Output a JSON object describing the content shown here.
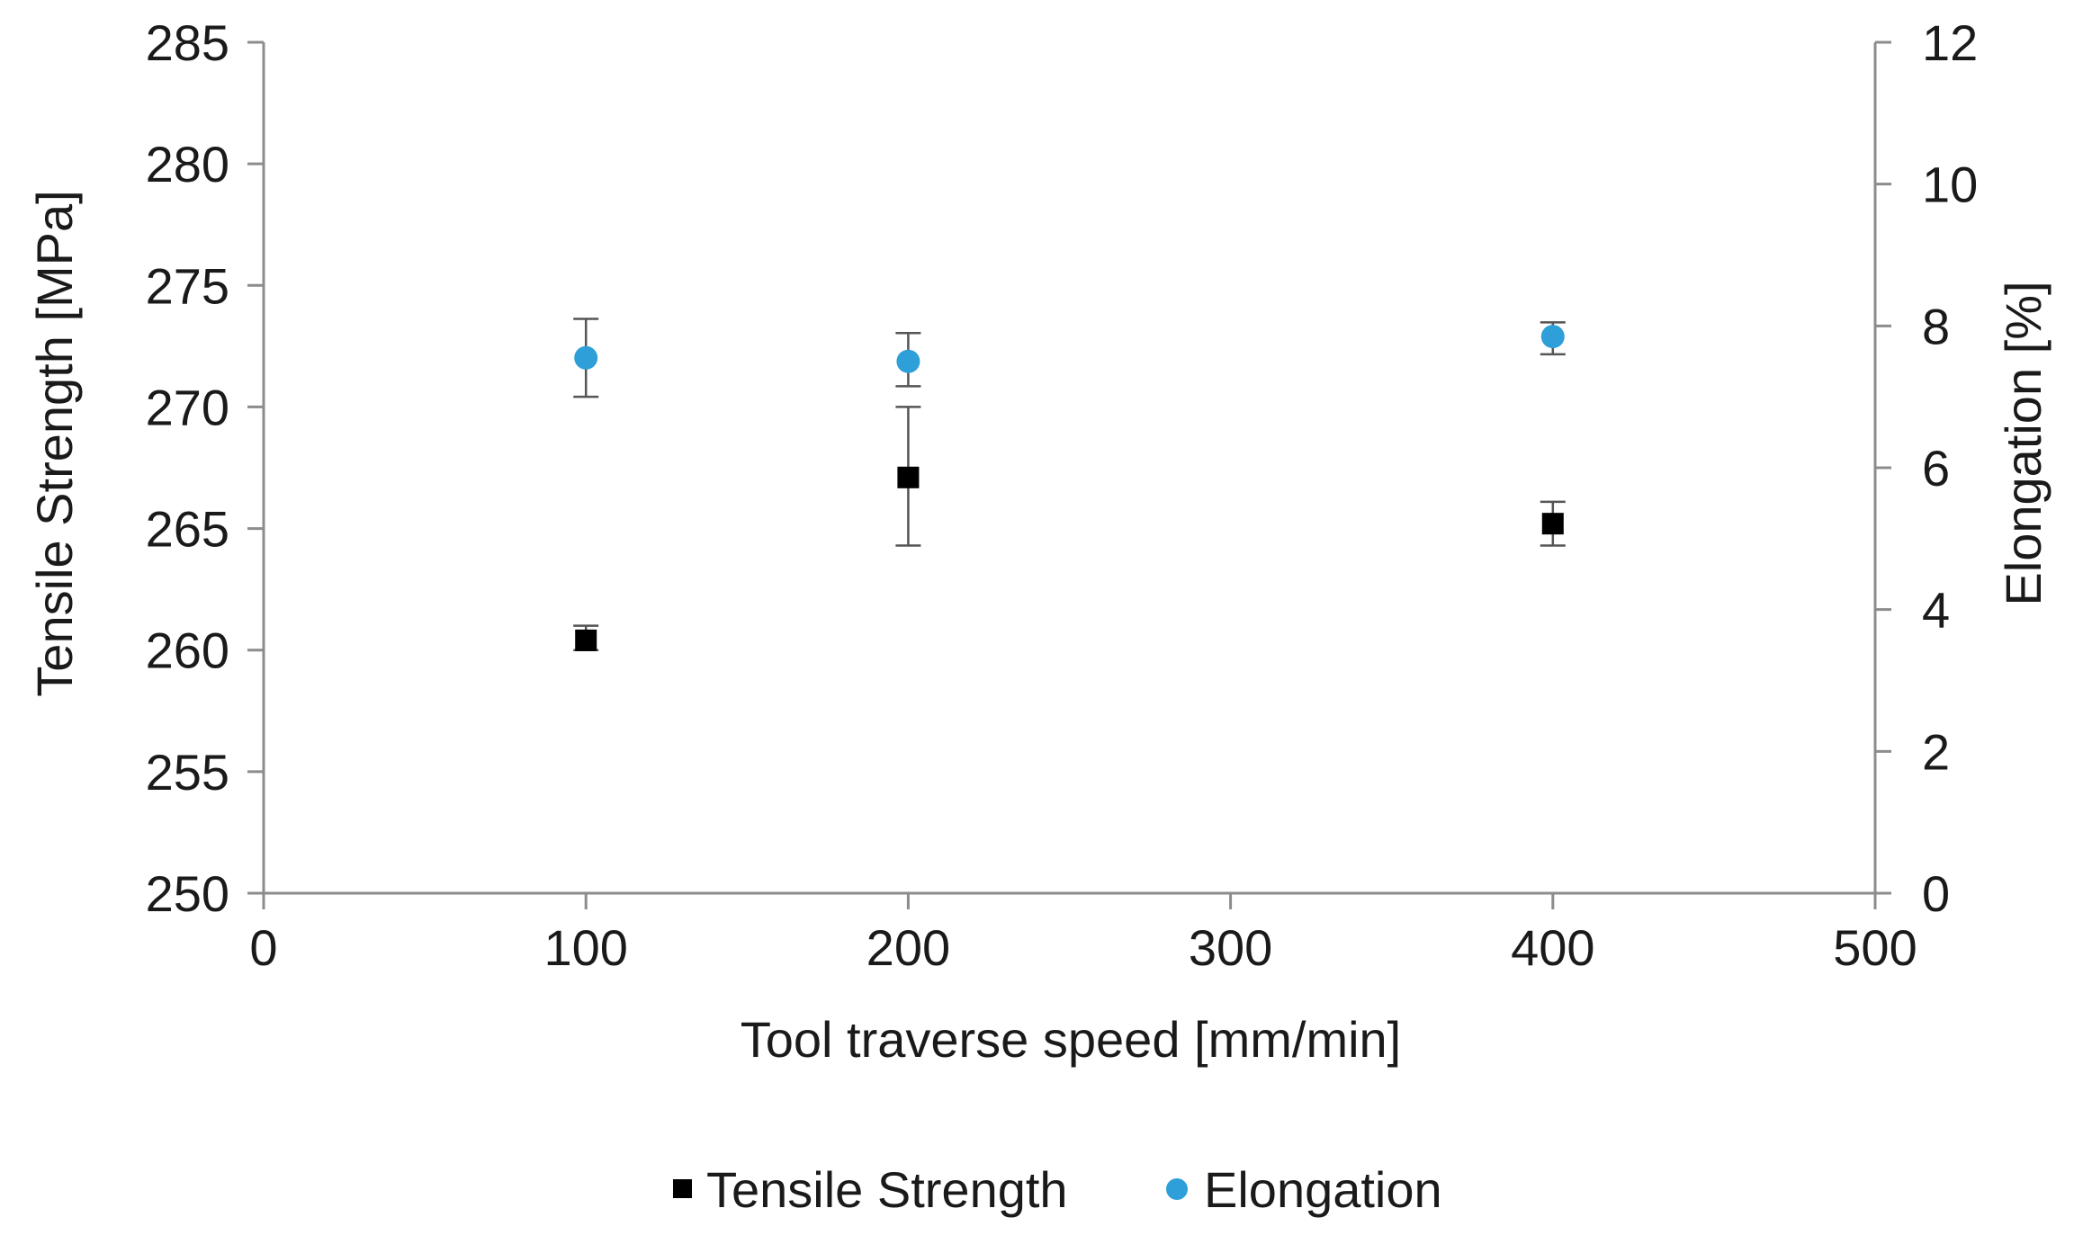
{
  "chart_data": {
    "type": "scatter",
    "xlabel": "Tool traverse speed [mm/min]",
    "ylabel": "Tensile Strength [MPa]",
    "y2label": "Elongation [%]",
    "xlim": [
      0,
      500
    ],
    "ylim": [
      250,
      285
    ],
    "y2lim": [
      0,
      12
    ],
    "xticks": [
      "0",
      "100",
      "200",
      "300",
      "400",
      "500"
    ],
    "yticks": [
      "250",
      "255",
      "260",
      "265",
      "270",
      "275",
      "280",
      "285"
    ],
    "y2ticks": [
      "0",
      "2",
      "4",
      "6",
      "8",
      "10",
      "12"
    ],
    "grid": false,
    "legend_position": "bottom",
    "series": [
      {
        "name": "Tensile Strength",
        "axis": "left",
        "marker": "square",
        "color": "#000000",
        "points": [
          {
            "x": 100,
            "y": 260.4,
            "err_low": 260.0,
            "err_high": 261.0
          },
          {
            "x": 200,
            "y": 267.1,
            "err_low": 264.3,
            "err_high": 270.0
          },
          {
            "x": 400,
            "y": 265.2,
            "err_low": 264.3,
            "err_high": 266.1
          }
        ]
      },
      {
        "name": "Elongation",
        "axis": "right",
        "marker": "circle",
        "color": "#2e9fd8",
        "points": [
          {
            "x": 100,
            "y": 7.55,
            "err_low": 7.0,
            "err_high": 8.1
          },
          {
            "x": 200,
            "y": 7.5,
            "err_low": 7.15,
            "err_high": 7.9
          },
          {
            "x": 400,
            "y": 7.85,
            "err_low": 7.6,
            "err_high": 8.05
          }
        ]
      }
    ]
  }
}
